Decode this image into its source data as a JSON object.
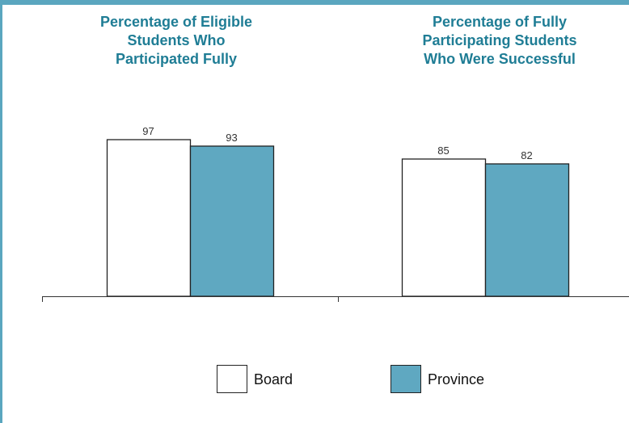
{
  "chart_data": [
    {
      "type": "bar",
      "title": "Percentage of Eligible\nStudents Who\nParticipated Fully",
      "categories": [
        null
      ],
      "ylim": [
        0,
        100
      ],
      "series": [
        {
          "name": "Board",
          "color": "#ffffff",
          "values": [
            97
          ]
        },
        {
          "name": "Province",
          "color": "#5fa8c1",
          "values": [
            93
          ]
        }
      ]
    },
    {
      "type": "bar",
      "title": "Percentage of Fully\nParticipating Students\nWho Were Successful",
      "categories": [
        null
      ],
      "ylim": [
        0,
        100
      ],
      "series": [
        {
          "name": "Board",
          "color": "#ffffff",
          "values": [
            85
          ]
        },
        {
          "name": "Province",
          "color": "#5fa8c1",
          "values": [
            82
          ]
        }
      ]
    }
  ]
}
